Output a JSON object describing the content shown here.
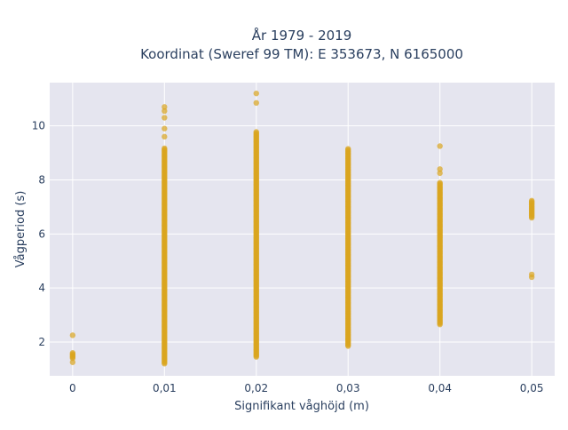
{
  "chart_data": {
    "type": "scatter",
    "title_lines": [
      "År 1979 - 2019",
      "Koordinat (Sweref 99 TM): E 353673, N 6165000"
    ],
    "xlabel": "Signifikant våghöjd (m)",
    "ylabel": "Vågperiod (s)",
    "xlim": [
      -0.0025,
      0.0525
    ],
    "ylim": [
      0.75,
      11.6
    ],
    "x_ticks": [
      {
        "value": 0,
        "label": "0"
      },
      {
        "value": 0.01,
        "label": "0,01"
      },
      {
        "value": 0.02,
        "label": "0,02"
      },
      {
        "value": 0.03,
        "label": "0,03"
      },
      {
        "value": 0.04,
        "label": "0,04"
      },
      {
        "value": 0.05,
        "label": "0,05"
      }
    ],
    "y_ticks": [
      {
        "value": 2,
        "label": "2"
      },
      {
        "value": 4,
        "label": "4"
      },
      {
        "value": 6,
        "label": "6"
      },
      {
        "value": 8,
        "label": "8"
      },
      {
        "value": 10,
        "label": "10"
      }
    ],
    "grid": true,
    "marker_color": "#DAA520",
    "plot_background": "#E5E5EF",
    "columns": [
      {
        "x": 0,
        "y_min": 1.4,
        "y_max": 1.6,
        "outliers": [
          1.25,
          2.25
        ]
      },
      {
        "x": 0.01,
        "y_min": 1.2,
        "y_max": 9.2,
        "outliers": [
          9.6,
          9.9,
          10.3,
          10.55,
          10.7
        ]
      },
      {
        "x": 0.02,
        "y_min": 1.45,
        "y_max": 9.8,
        "outliers": [
          10.85,
          11.2
        ]
      },
      {
        "x": 0.03,
        "y_min": 1.85,
        "y_max": 9.15,
        "outliers": []
      },
      {
        "x": 0.04,
        "y_min": 2.65,
        "y_max": 7.9,
        "outliers": [
          8.25,
          8.4,
          9.25
        ]
      },
      {
        "x": 0.05,
        "y_min": 6.6,
        "y_max": 7.25,
        "outliers": [
          4.4,
          4.5
        ]
      }
    ]
  }
}
